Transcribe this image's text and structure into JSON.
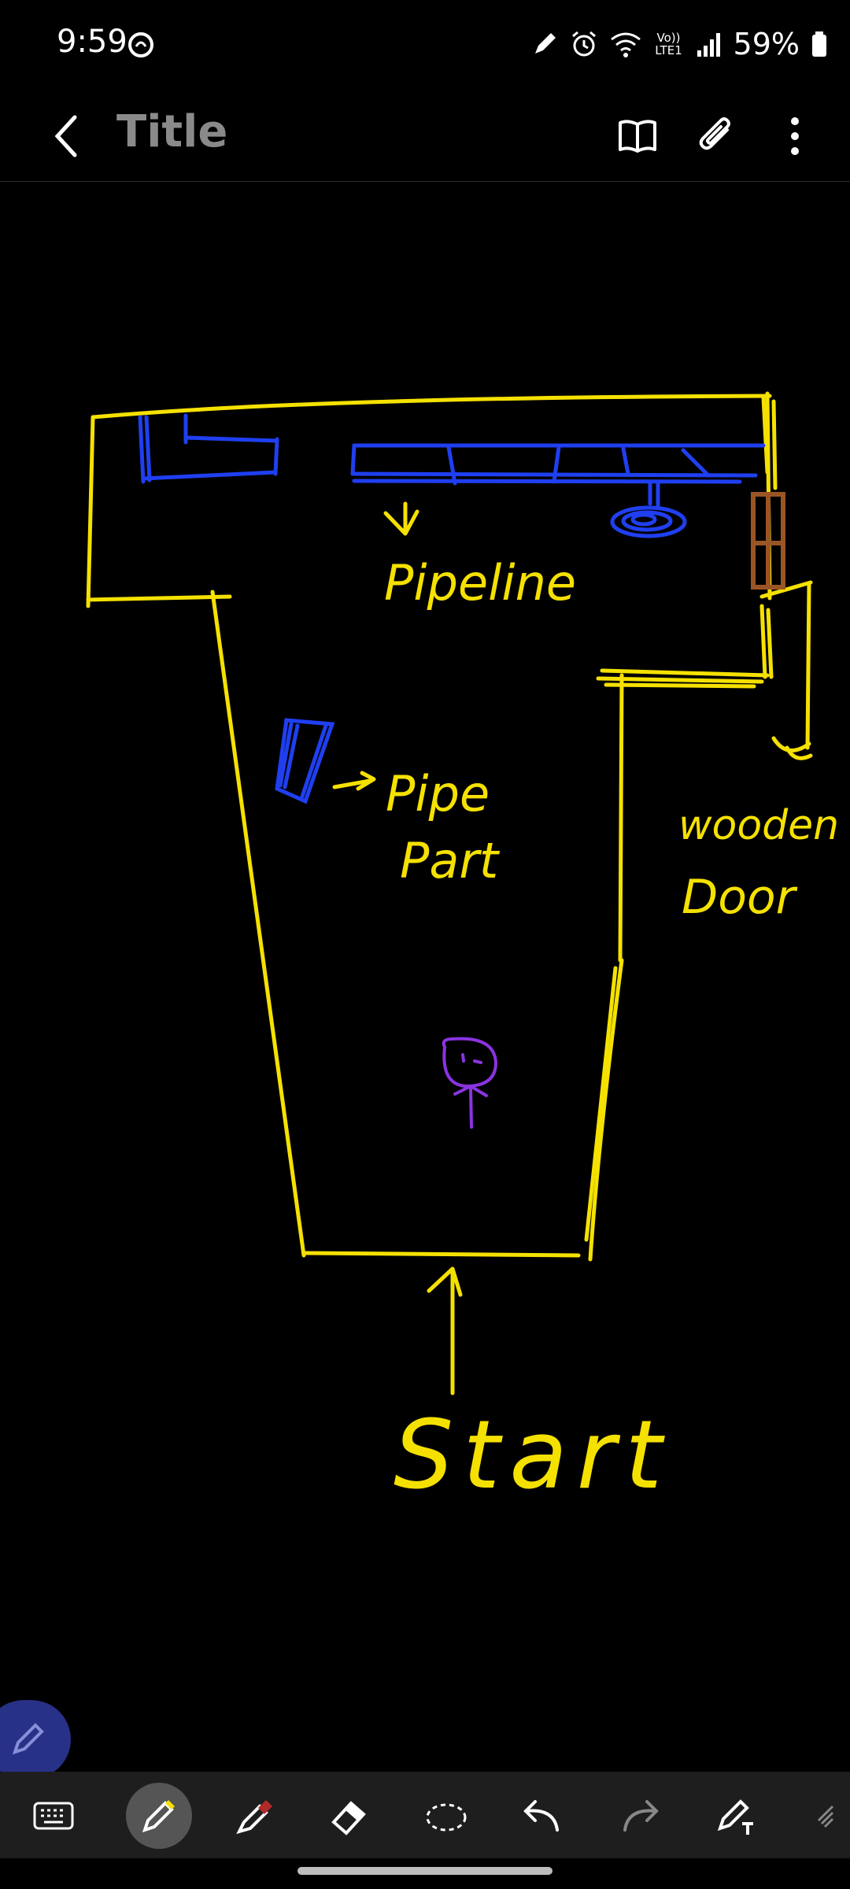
{
  "status_bar": {
    "time": "9:59",
    "network_label": "Vo)) LTE1",
    "battery": "59%"
  },
  "header": {
    "title": "Title"
  },
  "drawing": {
    "labels": {
      "pipeline": "Pipeline",
      "pipe_part_1": "Pipe",
      "pipe_part_2": "Part",
      "wooden_1": "wooden",
      "wooden_2": "Door",
      "start": "Start"
    },
    "colors": {
      "walls": "#f5e100",
      "pipes": "#1f3ff0",
      "door": "#9a5525",
      "person": "#8b33e0"
    }
  },
  "toolbar": {
    "tools": [
      "keyboard-icon",
      "pen-icon",
      "highlighter-icon",
      "eraser-icon",
      "lasso-icon",
      "undo-icon",
      "redo-icon",
      "text-pen-icon",
      "more-icon"
    ],
    "selected": "pen-icon"
  }
}
